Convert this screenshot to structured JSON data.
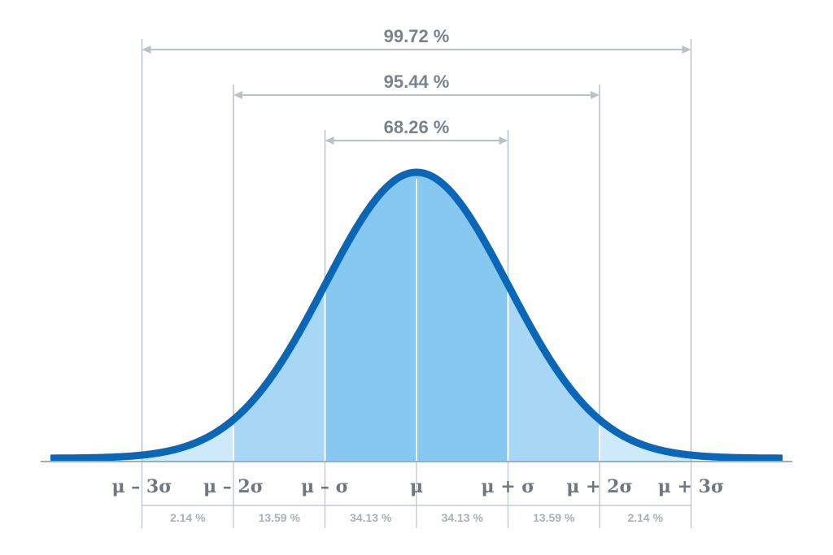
{
  "chart_data": {
    "type": "area",
    "mean": 0,
    "sigma": 1,
    "x_range": [
      -4,
      4
    ],
    "tick_values": [
      -3,
      -2,
      -1,
      0,
      1,
      2,
      3
    ],
    "tick_labels": [
      "μ – 3σ",
      "μ – 2σ",
      "μ – σ",
      "μ",
      "μ + σ",
      "μ + 2σ",
      "μ + 3σ"
    ],
    "segments": [
      {
        "from": -3,
        "to": -2,
        "percent": 2.14,
        "label": "2.14 %"
      },
      {
        "from": -2,
        "to": -1,
        "percent": 13.59,
        "label": "13.59 %"
      },
      {
        "from": -1,
        "to": 0,
        "percent": 34.13,
        "label": "34.13 %"
      },
      {
        "from": 0,
        "to": 1,
        "percent": 34.13,
        "label": "34.13 %"
      },
      {
        "from": 1,
        "to": 2,
        "percent": 13.59,
        "label": "13.59 %"
      },
      {
        "from": 2,
        "to": 3,
        "percent": 2.14,
        "label": "2.14 %"
      }
    ],
    "ranges": [
      {
        "from": -3,
        "to": 3,
        "percent": 99.72,
        "label": "99.72 %"
      },
      {
        "from": -2,
        "to": 2,
        "percent": 95.44,
        "label": "95.44 %"
      },
      {
        "from": -1,
        "to": 1,
        "percent": 68.26,
        "label": "68.26 %"
      }
    ],
    "grid": false,
    "legend": "none"
  },
  "colors": {
    "curve": "#0a67b8",
    "fill_inner": "#86c8f0",
    "fill_middle": "#a8d7f5",
    "fill_outer": "#cde9fa",
    "guide_line": "#b9c2c9",
    "axis": "#a3abb3",
    "range_text": "#7a828c",
    "tick_text": "#6f7780",
    "percent_text": "#a9b0b7",
    "background": "#ffffff"
  }
}
